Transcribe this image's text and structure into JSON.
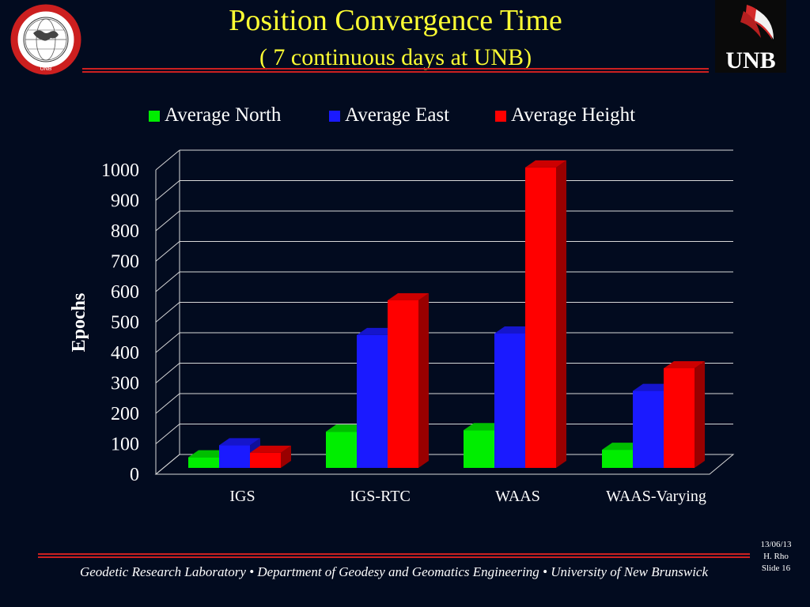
{
  "header": {
    "title": "Position Convergence Time",
    "subtitle": "( 7 continuous days at UNB)",
    "left_logo_text": "GEODESY AND GEOMATICS ENGINEERING UNB",
    "right_logo_text": "UNB"
  },
  "chart_data": {
    "type": "bar",
    "categories": [
      "IGS",
      "IGS-RTC",
      "WAAS",
      "WAAS-Varying"
    ],
    "series": [
      {
        "name": "Average North",
        "color": "#00ee00",
        "values": [
          35,
          120,
          125,
          60
        ]
      },
      {
        "name": "Average East",
        "color": "#1a1aff",
        "values": [
          75,
          440,
          445,
          255
        ]
      },
      {
        "name": "Average Height",
        "color": "#ff0000",
        "values": [
          50,
          555,
          995,
          330
        ]
      }
    ],
    "ylabel": "Epochs",
    "ylim": [
      0,
      1000
    ],
    "yticks": [
      "0",
      "100",
      "200",
      "300",
      "400",
      "500",
      "600",
      "700",
      "800",
      "900",
      "1000"
    ],
    "grid": true,
    "legend_position": "top"
  },
  "footer": {
    "text": "Geodetic Research Laboratory • Department of Geodesy and Geomatics Engineering • University of New Brunswick",
    "date": "13/06/13",
    "author": "H. Rho",
    "slide": "Slide 16"
  }
}
